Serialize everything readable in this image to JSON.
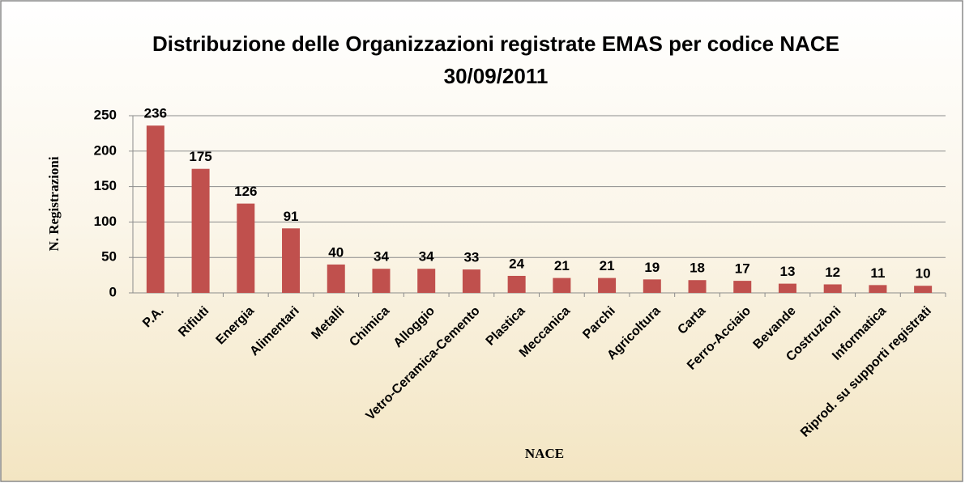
{
  "chart_data": {
    "type": "bar",
    "title": "Distribuzione delle Organizzazioni registrate EMAS per codice NACE",
    "subtitle": "30/09/2011",
    "x_label": "NACE",
    "y_label": "N. Registrazioni",
    "categories": [
      "P.A.",
      "Rifiuti",
      "Energia",
      "Alimentari",
      "Metalli",
      "Chimica",
      "Alloggio",
      "Vetro-Ceramica-Cemento",
      "Plastica",
      "Meccanica",
      "Parchi",
      "Agricoltura",
      "Carta",
      "Ferro-Acciaio",
      "Bevande",
      "Costruzioni",
      "Informatica",
      "Riprod. su supporti registrati"
    ],
    "values": [
      236,
      175,
      126,
      91,
      40,
      34,
      34,
      33,
      24,
      21,
      21,
      19,
      18,
      17,
      13,
      12,
      11,
      10
    ],
    "color": "#c0504d",
    "ylim": [
      0,
      250
    ],
    "yticks": [
      0,
      50,
      100,
      150,
      200,
      250
    ],
    "grid": true
  }
}
